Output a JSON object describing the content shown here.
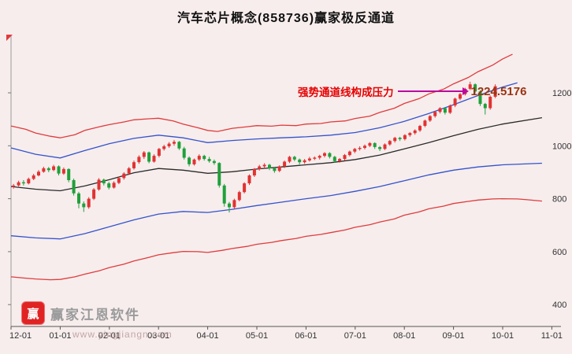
{
  "title": "汽车芯片概念(858736)赢家极反通道",
  "annotation": {
    "text": "强势通道线构成压力",
    "price_label": "1224.5176"
  },
  "watermark": {
    "brand": "赢家江恩软件",
    "url": "www.yingjiangn.com",
    "logo_char": "赢"
  },
  "colors": {
    "background": "#f7eded",
    "up": "#e13232",
    "down": "#1fa03a",
    "rail_red": "#e13b3b",
    "lifeline_blue": "#3353cc",
    "decision_black": "#2a2a2a",
    "arrow": "#bb0a9e",
    "price": "#993311",
    "annotation_red": "#e60000",
    "brand_gray": "#9a9a9a",
    "axis_text": "#333333"
  },
  "chart_data": {
    "type": "candlestick",
    "title": "汽车芯片概念(858736)赢家极反通道",
    "legend_position": "none",
    "grid": false,
    "x_ticks": [
      "12-01",
      "01-01",
      "02-01",
      "03-01",
      "04-01",
      "05-01",
      "06-01",
      "07-01",
      "08-01",
      "09-01",
      "10-01",
      "11-01"
    ],
    "y_ticks": [
      1200,
      1000,
      800,
      600,
      400
    ],
    "y_range_estimate": [
      320,
      1420
    ],
    "last_price": 1224.5176,
    "candles_span_months": 9.9,
    "candles_ohlc": [
      [
        845,
        856,
        838,
        850
      ],
      [
        850,
        868,
        846,
        862
      ],
      [
        862,
        870,
        850,
        858
      ],
      [
        858,
        880,
        854,
        875
      ],
      [
        875,
        894,
        870,
        888
      ],
      [
        888,
        908,
        884,
        902
      ],
      [
        902,
        921,
        898,
        915
      ],
      [
        915,
        920,
        900,
        908
      ],
      [
        908,
        928,
        904,
        922
      ],
      [
        922,
        926,
        888,
        895
      ],
      [
        895,
        918,
        890,
        912
      ],
      [
        912,
        915,
        862,
        870
      ],
      [
        870,
        876,
        812,
        820
      ],
      [
        820,
        826,
        764,
        782
      ],
      [
        782,
        790,
        750,
        768
      ],
      [
        768,
        806,
        762,
        800
      ],
      [
        800,
        840,
        795,
        835
      ],
      [
        835,
        878,
        830,
        872
      ],
      [
        872,
        876,
        850,
        858
      ],
      [
        858,
        864,
        835,
        842
      ],
      [
        842,
        866,
        838,
        860
      ],
      [
        860,
        884,
        855,
        878
      ],
      [
        878,
        900,
        872,
        895
      ],
      [
        895,
        920,
        890,
        915
      ],
      [
        915,
        944,
        910,
        938
      ],
      [
        938,
        964,
        932,
        958
      ],
      [
        958,
        980,
        950,
        975
      ],
      [
        975,
        978,
        934,
        940
      ],
      [
        940,
        968,
        936,
        962
      ],
      [
        962,
        992,
        956,
        988
      ],
      [
        988,
        1004,
        982,
        998
      ],
      [
        998,
        1014,
        992,
        1008
      ],
      [
        1008,
        1022,
        1000,
        1015
      ],
      [
        1015,
        1018,
        984,
        990
      ],
      [
        990,
        996,
        948,
        955
      ],
      [
        955,
        960,
        922,
        930
      ],
      [
        930,
        952,
        925,
        948
      ],
      [
        948,
        968,
        942,
        962
      ],
      [
        962,
        966,
        944,
        950
      ],
      [
        950,
        958,
        936,
        942
      ],
      [
        942,
        948,
        928,
        935
      ],
      [
        935,
        938,
        842,
        850
      ],
      [
        850,
        856,
        770,
        782
      ],
      [
        782,
        788,
        748,
        768
      ],
      [
        768,
        800,
        760,
        795
      ],
      [
        795,
        830,
        790,
        825
      ],
      [
        825,
        862,
        820,
        858
      ],
      [
        858,
        892,
        852,
        888
      ],
      [
        888,
        916,
        882,
        912
      ],
      [
        912,
        928,
        906,
        922
      ],
      [
        922,
        934,
        914,
        928
      ],
      [
        928,
        932,
        908,
        915
      ],
      [
        915,
        920,
        898,
        905
      ],
      [
        905,
        926,
        900,
        922
      ],
      [
        922,
        944,
        916,
        940
      ],
      [
        940,
        962,
        935,
        958
      ],
      [
        958,
        962,
        942,
        948
      ],
      [
        948,
        952,
        930,
        938
      ],
      [
        938,
        950,
        932,
        945
      ],
      [
        945,
        958,
        940,
        952
      ],
      [
        952,
        960,
        946,
        955
      ],
      [
        955,
        966,
        948,
        962
      ],
      [
        962,
        976,
        956,
        972
      ],
      [
        972,
        976,
        952,
        958
      ],
      [
        958,
        962,
        936,
        942
      ],
      [
        942,
        954,
        936,
        950
      ],
      [
        950,
        969,
        944,
        965
      ],
      [
        965,
        982,
        960,
        978
      ],
      [
        978,
        992,
        972,
        988
      ],
      [
        988,
        998,
        982,
        992
      ],
      [
        992,
        1005,
        986,
        1000
      ],
      [
        1000,
        1014,
        995,
        1010
      ],
      [
        1010,
        1013,
        988,
        995
      ],
      [
        995,
        999,
        980,
        988
      ],
      [
        988,
        1009,
        984,
        1005
      ],
      [
        1005,
        1022,
        1000,
        1018
      ],
      [
        1018,
        1034,
        1012,
        1030
      ],
      [
        1030,
        1034,
        1018,
        1025
      ],
      [
        1025,
        1044,
        1020,
        1040
      ],
      [
        1040,
        1052,
        1034,
        1048
      ],
      [
        1048,
        1062,
        1042,
        1058
      ],
      [
        1058,
        1079,
        1052,
        1075
      ],
      [
        1075,
        1099,
        1070,
        1095
      ],
      [
        1095,
        1116,
        1090,
        1112
      ],
      [
        1112,
        1132,
        1106,
        1128
      ],
      [
        1128,
        1146,
        1122,
        1142
      ],
      [
        1142,
        1146,
        1118,
        1125
      ],
      [
        1125,
        1156,
        1120,
        1152
      ],
      [
        1152,
        1182,
        1146,
        1178
      ],
      [
        1178,
        1199,
        1172,
        1195
      ],
      [
        1195,
        1219,
        1190,
        1215
      ],
      [
        1215,
        1242,
        1210,
        1232
      ],
      [
        1232,
        1236,
        1198,
        1205
      ],
      [
        1205,
        1210,
        1150,
        1158
      ],
      [
        1158,
        1162,
        1118,
        1142
      ],
      [
        1142,
        1190,
        1136,
        1185
      ],
      [
        1185,
        1232,
        1180,
        1224.5176
      ]
    ],
    "overlays": [
      {
        "name": "upper-rail",
        "color": "#e13b3b",
        "points_month_value": [
          [
            0,
            1075
          ],
          [
            0.3,
            1062
          ],
          [
            0.5,
            1048
          ],
          [
            0.8,
            1036
          ],
          [
            1,
            1030
          ],
          [
            1.3,
            1042
          ],
          [
            1.5,
            1058
          ],
          [
            1.8,
            1072
          ],
          [
            2,
            1080
          ],
          [
            2.3,
            1090
          ],
          [
            2.5,
            1098
          ],
          [
            2.8,
            1102
          ],
          [
            3,
            1104
          ],
          [
            3.3,
            1094
          ],
          [
            3.5,
            1082
          ],
          [
            3.8,
            1068
          ],
          [
            4,
            1058
          ],
          [
            4.2,
            1054
          ],
          [
            4.5,
            1066
          ],
          [
            4.8,
            1072
          ],
          [
            5,
            1076
          ],
          [
            5.3,
            1074
          ],
          [
            5.5,
            1078
          ],
          [
            5.8,
            1076
          ],
          [
            6,
            1082
          ],
          [
            6.3,
            1084
          ],
          [
            6.5,
            1090
          ],
          [
            6.8,
            1094
          ],
          [
            7,
            1103
          ],
          [
            7.3,
            1112
          ],
          [
            7.5,
            1126
          ],
          [
            7.8,
            1142
          ],
          [
            8,
            1160
          ],
          [
            8.3,
            1178
          ],
          [
            8.5,
            1196
          ],
          [
            8.8,
            1214
          ],
          [
            9,
            1234
          ],
          [
            9.3,
            1258
          ],
          [
            9.5,
            1280
          ],
          [
            9.8,
            1305
          ],
          [
            10,
            1328
          ],
          [
            10.2,
            1346
          ]
        ]
      },
      {
        "name": "upper-lifeline",
        "color": "#3353cc",
        "points_month_value": [
          [
            0,
            992
          ],
          [
            0.5,
            968
          ],
          [
            1,
            954
          ],
          [
            1.5,
            982
          ],
          [
            2,
            1008
          ],
          [
            2.5,
            1028
          ],
          [
            3,
            1040
          ],
          [
            3.5,
            1030
          ],
          [
            4,
            1012
          ],
          [
            4.5,
            1020
          ],
          [
            5,
            1026
          ],
          [
            5.5,
            1030
          ],
          [
            6,
            1034
          ],
          [
            6.5,
            1040
          ],
          [
            7,
            1050
          ],
          [
            7.5,
            1068
          ],
          [
            8,
            1092
          ],
          [
            8.5,
            1122
          ],
          [
            9,
            1155
          ],
          [
            9.5,
            1190
          ],
          [
            10,
            1222
          ],
          [
            10.3,
            1238
          ]
        ]
      },
      {
        "name": "decision-line",
        "color": "#2a2a2a",
        "points_month_value": [
          [
            0,
            846
          ],
          [
            0.5,
            836
          ],
          [
            1,
            830
          ],
          [
            1.5,
            848
          ],
          [
            2,
            872
          ],
          [
            2.5,
            898
          ],
          [
            3,
            914
          ],
          [
            3.5,
            908
          ],
          [
            4,
            896
          ],
          [
            4.5,
            902
          ],
          [
            5,
            912
          ],
          [
            5.5,
            920
          ],
          [
            6,
            928
          ],
          [
            6.5,
            936
          ],
          [
            7,
            948
          ],
          [
            7.5,
            965
          ],
          [
            8,
            988
          ],
          [
            8.5,
            1012
          ],
          [
            9,
            1038
          ],
          [
            9.5,
            1062
          ],
          [
            10,
            1082
          ],
          [
            10.8,
            1106
          ]
        ]
      },
      {
        "name": "lower-lifeline",
        "color": "#3353cc",
        "points_month_value": [
          [
            0,
            660
          ],
          [
            0.5,
            652
          ],
          [
            1,
            648
          ],
          [
            1.5,
            668
          ],
          [
            2,
            694
          ],
          [
            2.5,
            720
          ],
          [
            3,
            742
          ],
          [
            3.5,
            752
          ],
          [
            4,
            748
          ],
          [
            4.5,
            760
          ],
          [
            5,
            774
          ],
          [
            5.5,
            787
          ],
          [
            6,
            800
          ],
          [
            6.5,
            812
          ],
          [
            7,
            828
          ],
          [
            7.5,
            846
          ],
          [
            8,
            868
          ],
          [
            8.5,
            890
          ],
          [
            9,
            908
          ],
          [
            9.5,
            920
          ],
          [
            10,
            928
          ],
          [
            10.8,
            934
          ]
        ]
      },
      {
        "name": "lower-rail",
        "color": "#e13b3b",
        "points_month_value": [
          [
            0,
            505
          ],
          [
            0.3,
            500
          ],
          [
            0.5,
            497
          ],
          [
            0.8,
            494
          ],
          [
            1,
            495
          ],
          [
            1.3,
            505
          ],
          [
            1.5,
            515
          ],
          [
            1.8,
            528
          ],
          [
            2,
            540
          ],
          [
            2.3,
            553
          ],
          [
            2.5,
            565
          ],
          [
            2.8,
            578
          ],
          [
            3,
            588
          ],
          [
            3.3,
            596
          ],
          [
            3.5,
            601
          ],
          [
            3.8,
            600
          ],
          [
            4,
            597
          ],
          [
            4.3,
            605
          ],
          [
            4.5,
            612
          ],
          [
            4.8,
            620
          ],
          [
            5,
            628
          ],
          [
            5.3,
            635
          ],
          [
            5.5,
            642
          ],
          [
            5.8,
            650
          ],
          [
            6,
            658
          ],
          [
            6.3,
            665
          ],
          [
            6.5,
            672
          ],
          [
            6.8,
            682
          ],
          [
            7,
            692
          ],
          [
            7.3,
            702
          ],
          [
            7.5,
            712
          ],
          [
            7.8,
            724
          ],
          [
            8,
            738
          ],
          [
            8.3,
            750
          ],
          [
            8.5,
            762
          ],
          [
            8.8,
            772
          ],
          [
            9,
            782
          ],
          [
            9.3,
            790
          ],
          [
            9.5,
            795
          ],
          [
            9.8,
            799
          ],
          [
            10,
            800
          ],
          [
            10.3,
            799
          ],
          [
            10.5,
            796
          ],
          [
            10.8,
            791
          ]
        ]
      }
    ]
  }
}
